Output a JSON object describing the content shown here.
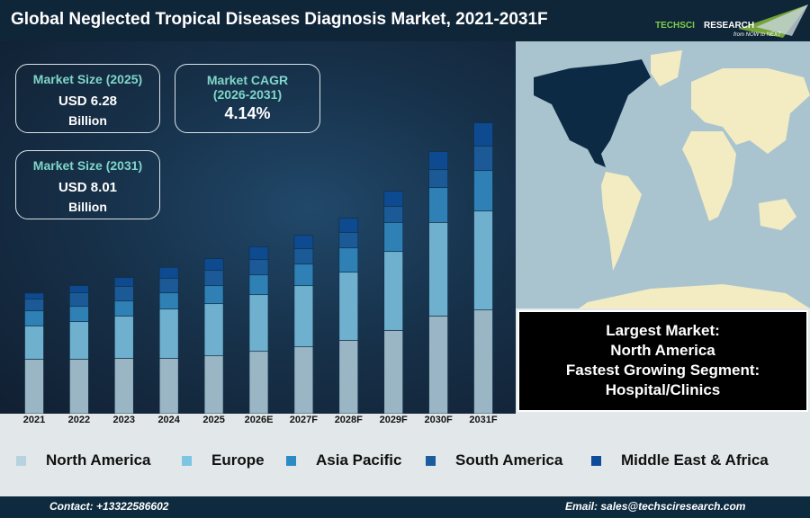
{
  "header": {
    "title": "Global Neglected Tropical Diseases Diagnosis Market, 2021-2031F",
    "logo_name": "TechSci Research",
    "logo_tagline": "from NOW to NEXT"
  },
  "cards": {
    "size2025": {
      "label": "Market Size (2025)",
      "value": "USD 6.28",
      "unit": "Billion"
    },
    "cagr": {
      "label": "Market CAGR",
      "period": "(2026-2031)",
      "value": "4.14%"
    },
    "size2031": {
      "label": "Market Size (2031)",
      "value": "USD 8.01",
      "unit": "Billion"
    }
  },
  "insight": {
    "line1": "Largest Market:",
    "line2": "North America",
    "line3": "Fastest Growing Segment:",
    "line4": "Hospital/Clinics"
  },
  "footer": {
    "contact": "Contact: +13322586602",
    "email": "Email: sales@techsciresearch.com"
  },
  "colors": {
    "header": "#0f2538",
    "land": "#f3ecc2",
    "ocean": "#a9c4cf",
    "highlight_region": "#0d2a45"
  },
  "chart_data": {
    "type": "bar",
    "stacked": true,
    "title": "",
    "xlabel": "",
    "ylabel": "",
    "grid": false,
    "y_axis_shown": false,
    "legend_position": "bottom",
    "note": "relative bar heights (no y-axis printed)",
    "categories": [
      "2021",
      "2022",
      "2023",
      "2024",
      "2025",
      "2026E",
      "2027F",
      "2028F",
      "2029F",
      "2030F",
      "2031F"
    ],
    "series": [
      {
        "name": "North America",
        "color": "#9ab5c3",
        "legend_color": "#b7d3df",
        "values": [
          182,
          182,
          185,
          185,
          193,
          208,
          223,
          245,
          278,
          326,
          346
        ]
      },
      {
        "name": "Europe",
        "color": "#6fb0cf",
        "legend_color": "#7cc6e3",
        "values": [
          111,
          125,
          141,
          164,
          174,
          189,
          204,
          227,
          263,
          312,
          330
        ]
      },
      {
        "name": "Asia Pacific",
        "color": "#2e80b5",
        "legend_color": "#2b8bc3",
        "values": [
          50,
          51,
          50,
          54,
          60,
          66,
          72,
          81,
          97,
          116,
          135
        ]
      },
      {
        "name": "South America",
        "color": "#1b5a97",
        "legend_color": "#1a5c9e",
        "values": [
          40,
          45,
          49,
          49,
          51,
          51,
          51,
          52,
          54,
          60,
          82
        ]
      },
      {
        "name": "Middle East & Africa",
        "color": "#0e4a90",
        "legend_color": "#0d4c99",
        "values": [
          19,
          24,
          29,
          36,
          39,
          43,
          45,
          47,
          50,
          60,
          77
        ]
      }
    ]
  }
}
